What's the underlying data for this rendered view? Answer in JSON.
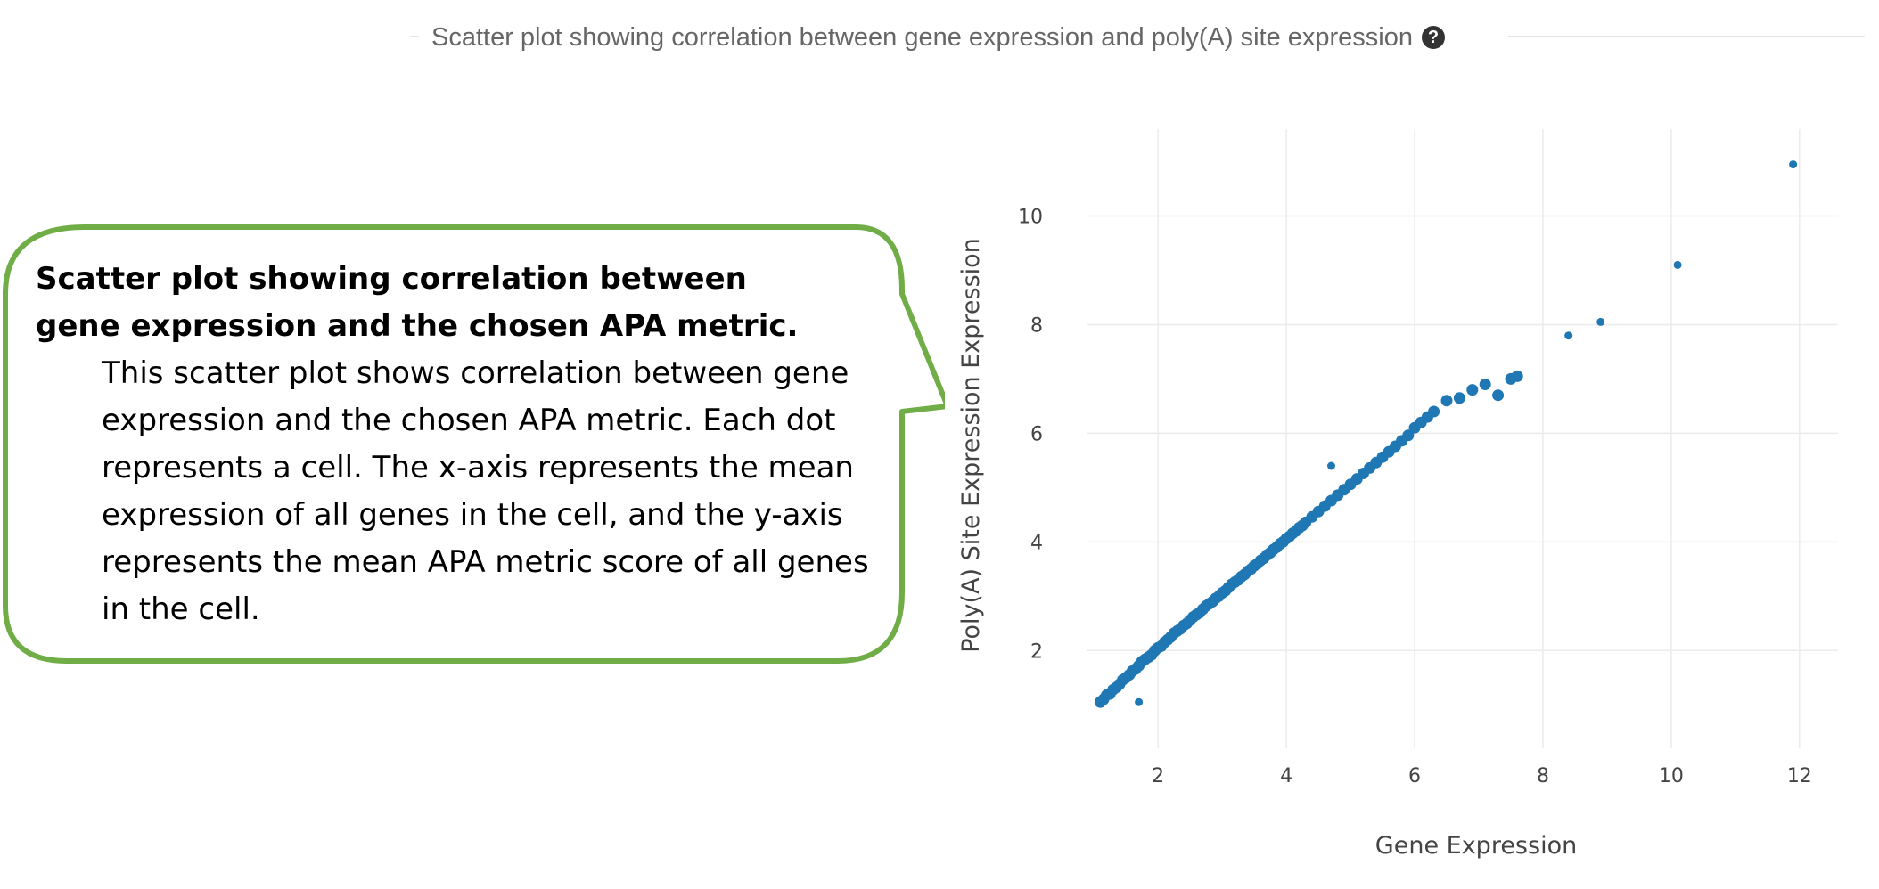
{
  "header": {
    "title": "Scatter plot showing correlation between gene expression and poly(A) site expression",
    "help_icon": "question-circle-icon"
  },
  "callout": {
    "heading": "Scatter plot showing correlation between gene expression and the chosen APA metric.",
    "body": "This scatter plot shows correlation between gene expression and the chosen APA metric. Each dot represents a cell. The x-axis represents the mean expression of all genes in the cell, and the y-axis represents the mean APA metric score of all genes in the cell.",
    "border_color": "#70ad47"
  },
  "chart_data": {
    "type": "scatter",
    "xlabel": "Gene Expression",
    "ylabel": "Poly(A) Site Expression Expression",
    "x_ticks": [
      2,
      4,
      6,
      8,
      10,
      12
    ],
    "y_ticks": [
      2,
      4,
      6,
      8,
      10
    ],
    "xlim": [
      0.9,
      12.6
    ],
    "ylim": [
      0.2,
      11.6
    ],
    "grid": true,
    "marker_color": "#1f77b4",
    "series": [
      {
        "points": [
          [
            1.1,
            1.05
          ],
          [
            1.15,
            1.1
          ],
          [
            1.2,
            1.18
          ],
          [
            1.25,
            1.2
          ],
          [
            1.3,
            1.28
          ],
          [
            1.35,
            1.32
          ],
          [
            1.4,
            1.38
          ],
          [
            1.45,
            1.46
          ],
          [
            1.5,
            1.5
          ],
          [
            1.55,
            1.55
          ],
          [
            1.6,
            1.62
          ],
          [
            1.65,
            1.66
          ],
          [
            1.7,
            1.72
          ],
          [
            1.75,
            1.8
          ],
          [
            1.8,
            1.84
          ],
          [
            1.85,
            1.88
          ],
          [
            1.9,
            1.92
          ],
          [
            1.95,
            2.0
          ],
          [
            2.0,
            2.05
          ],
          [
            2.05,
            2.08
          ],
          [
            2.1,
            2.15
          ],
          [
            2.15,
            2.2
          ],
          [
            2.2,
            2.25
          ],
          [
            2.25,
            2.32
          ],
          [
            2.3,
            2.36
          ],
          [
            2.35,
            2.4
          ],
          [
            2.4,
            2.46
          ],
          [
            2.45,
            2.5
          ],
          [
            2.5,
            2.56
          ],
          [
            2.55,
            2.62
          ],
          [
            2.6,
            2.66
          ],
          [
            2.65,
            2.7
          ],
          [
            2.7,
            2.76
          ],
          [
            2.75,
            2.82
          ],
          [
            2.8,
            2.86
          ],
          [
            2.85,
            2.9
          ],
          [
            2.9,
            2.96
          ],
          [
            2.95,
            3.0
          ],
          [
            3.0,
            3.06
          ],
          [
            3.05,
            3.1
          ],
          [
            3.1,
            3.16
          ],
          [
            3.15,
            3.22
          ],
          [
            3.2,
            3.26
          ],
          [
            3.25,
            3.3
          ],
          [
            3.3,
            3.36
          ],
          [
            3.35,
            3.4
          ],
          [
            3.4,
            3.46
          ],
          [
            3.45,
            3.5
          ],
          [
            3.5,
            3.56
          ],
          [
            3.55,
            3.6
          ],
          [
            3.6,
            3.66
          ],
          [
            3.65,
            3.7
          ],
          [
            3.7,
            3.76
          ],
          [
            3.75,
            3.8
          ],
          [
            3.8,
            3.86
          ],
          [
            3.85,
            3.9
          ],
          [
            3.9,
            3.96
          ],
          [
            3.95,
            4.0
          ],
          [
            4.0,
            4.06
          ],
          [
            4.05,
            4.1
          ],
          [
            4.1,
            4.16
          ],
          [
            4.15,
            4.2
          ],
          [
            4.2,
            4.26
          ],
          [
            4.25,
            4.3
          ],
          [
            4.3,
            4.36
          ],
          [
            4.4,
            4.46
          ],
          [
            4.5,
            4.56
          ],
          [
            4.6,
            4.66
          ],
          [
            4.7,
            4.76
          ],
          [
            4.8,
            4.86
          ],
          [
            4.9,
            4.96
          ],
          [
            5.0,
            5.06
          ],
          [
            5.1,
            5.16
          ],
          [
            5.2,
            5.26
          ],
          [
            5.3,
            5.36
          ],
          [
            5.4,
            5.46
          ],
          [
            5.5,
            5.56
          ],
          [
            5.6,
            5.66
          ],
          [
            5.7,
            5.76
          ],
          [
            5.8,
            5.86
          ],
          [
            5.9,
            5.96
          ],
          [
            6.0,
            6.1
          ],
          [
            6.1,
            6.2
          ],
          [
            6.2,
            6.3
          ],
          [
            6.3,
            6.4
          ],
          [
            6.5,
            6.6
          ],
          [
            6.7,
            6.65
          ],
          [
            6.9,
            6.8
          ],
          [
            7.1,
            6.9
          ],
          [
            7.3,
            6.7
          ],
          [
            7.5,
            7.0
          ],
          [
            7.6,
            7.05
          ],
          [
            4.7,
            5.4
          ],
          [
            1.7,
            1.05
          ],
          [
            8.4,
            7.8
          ],
          [
            8.9,
            8.05
          ],
          [
            10.1,
            9.1
          ],
          [
            11.9,
            10.95
          ]
        ]
      }
    ]
  }
}
